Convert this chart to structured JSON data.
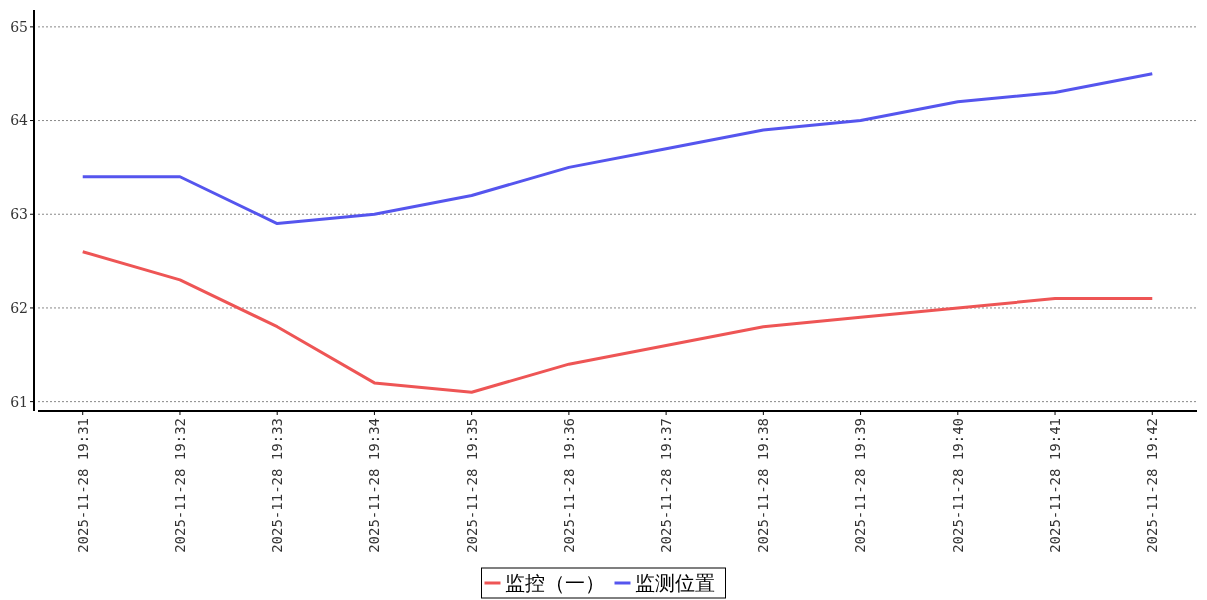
{
  "chart_data": {
    "type": "line",
    "categories": [
      "2025-11-28 19:31",
      "2025-11-28 19:32",
      "2025-11-28 19:33",
      "2025-11-28 19:34",
      "2025-11-28 19:35",
      "2025-11-28 19:36",
      "2025-11-28 19:37",
      "2025-11-28 19:38",
      "2025-11-28 19:39",
      "2025-11-28 19:40",
      "2025-11-28 19:41",
      "2025-11-28 19:42"
    ],
    "series": [
      {
        "name": "监控（一）",
        "color": "#ee5555",
        "values": [
          62.6,
          62.3,
          61.8,
          61.2,
          61.1,
          61.4,
          61.6,
          61.8,
          61.9,
          62.0,
          62.1,
          62.1
        ]
      },
      {
        "name": "监测位置",
        "color": "#5555ee",
        "values": [
          63.4,
          63.4,
          62.9,
          63.0,
          63.2,
          63.5,
          63.7,
          63.9,
          64.0,
          64.2,
          64.3,
          64.5
        ]
      }
    ],
    "ylim": [
      60.9,
      65.18
    ],
    "yticks": [
      61,
      62,
      63,
      64,
      65
    ],
    "grid": "y",
    "legend": "bottom",
    "marker": "none",
    "line_style": "solid"
  }
}
